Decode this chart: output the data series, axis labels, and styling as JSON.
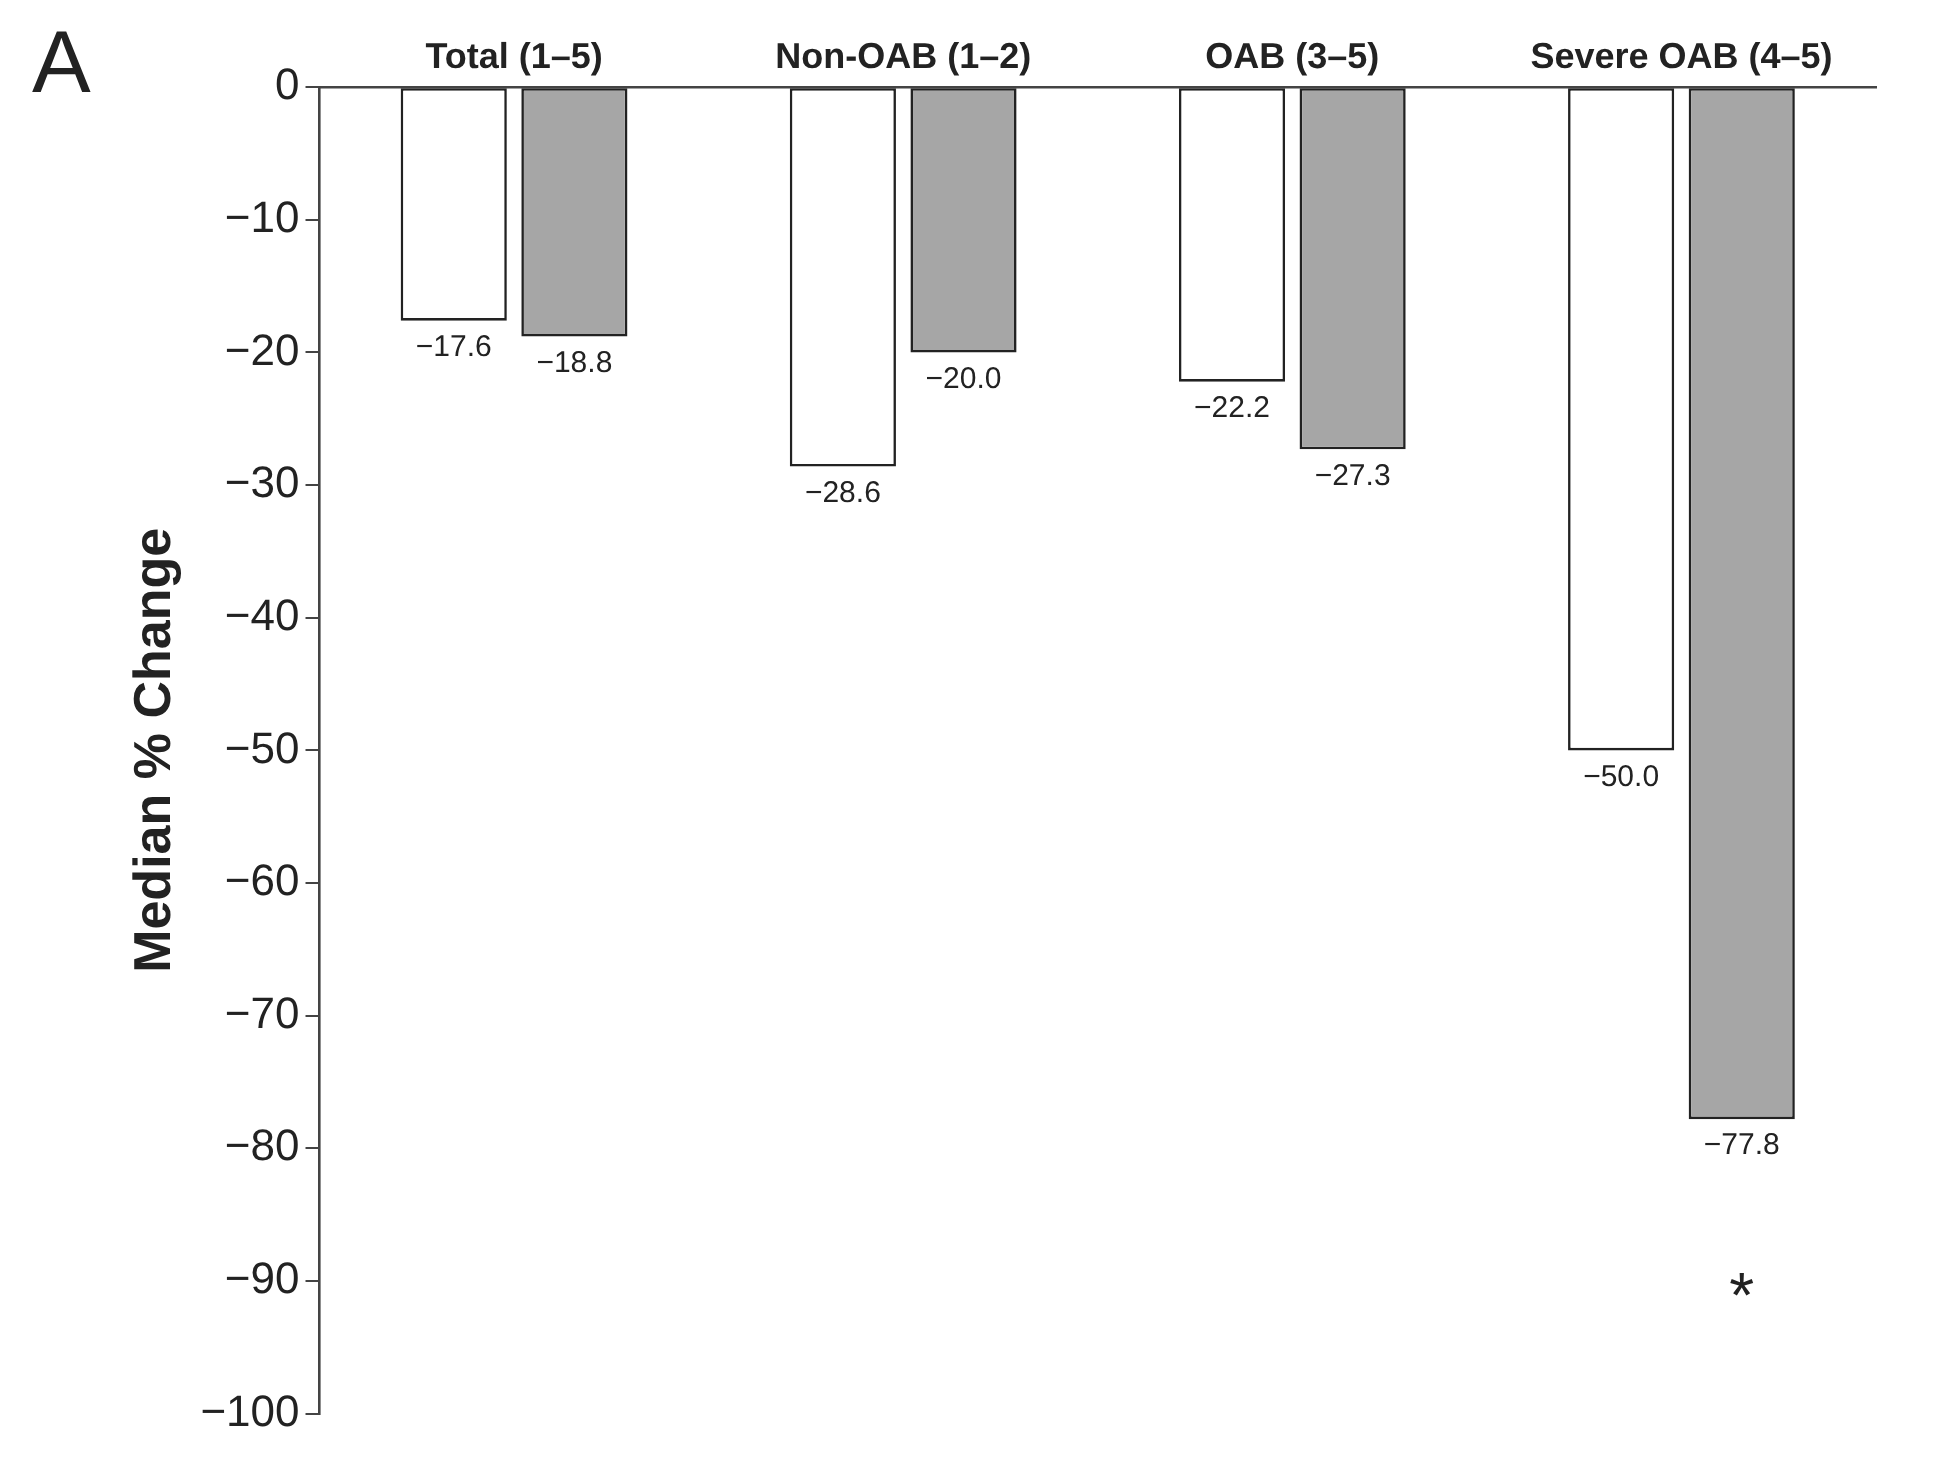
{
  "chart_data": {
    "type": "bar",
    "ylabel": "Median % Change",
    "categories": [
      "Total (1–5)",
      "Non-OAB (1–2)",
      "OAB (3–5)",
      "Severe OAB (4–5)"
    ],
    "series": [
      {
        "color": "#ffffff",
        "values": [
          -17.6,
          -28.6,
          -22.2,
          -50.0
        ],
        "value_labels": [
          "−17.6",
          "−28.6",
          "−22.2",
          "−50.0"
        ]
      },
      {
        "color": "#a6a6a6",
        "values": [
          -18.8,
          -20.0,
          -27.3,
          -77.8
        ],
        "value_labels": [
          "−18.8",
          "−20.0",
          "−27.3",
          "−77.8"
        ]
      }
    ],
    "ylim": [
      -100,
      0
    ],
    "yticks": [
      {
        "value": 0,
        "label": "0"
      },
      {
        "value": -10,
        "label": "−10"
      },
      {
        "value": -20,
        "label": "−20"
      },
      {
        "value": -30,
        "label": "−30"
      },
      {
        "value": -40,
        "label": "−40"
      },
      {
        "value": -50,
        "label": "−50"
      },
      {
        "value": -60,
        "label": "−60"
      },
      {
        "value": -70,
        "label": "−70"
      },
      {
        "value": -80,
        "label": "−80"
      },
      {
        "value": -90,
        "label": "−90"
      },
      {
        "value": -100,
        "label": "−100"
      }
    ],
    "annotations": [
      "A",
      "*"
    ],
    "grid": false,
    "legend": false
  }
}
